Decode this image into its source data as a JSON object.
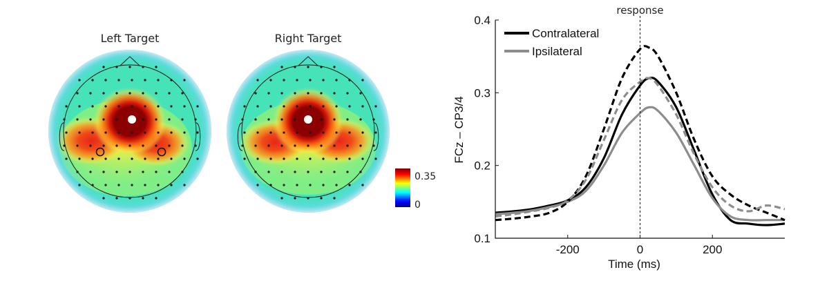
{
  "topomaps": [
    {
      "title": "Left Target",
      "hot_spots": [
        {
          "label": "frontocentral-peak",
          "value": 0.35
        },
        {
          "label": "left-posterior",
          "value": 0.27
        },
        {
          "label": "right-posterior",
          "value": 0.22
        }
      ],
      "marked_electrodes": [
        "left-posterior",
        "right-posterior"
      ]
    },
    {
      "title": "Right Target",
      "hot_spots": [
        {
          "label": "frontocentral-peak",
          "value": 0.35
        },
        {
          "label": "left-posterior",
          "value": 0.24
        },
        {
          "label": "right-posterior",
          "value": 0.25
        }
      ],
      "marked_electrodes": []
    }
  ],
  "colorbar": {
    "max_label": "0.35",
    "min_label": "0",
    "colormap": [
      "#00008f",
      "#0000ff",
      "#00ffff",
      "#ffff00",
      "#ff0000",
      "#800000"
    ]
  },
  "chart_data": {
    "type": "line",
    "annotation": "response",
    "xlabel": "Time (ms)",
    "ylabel": "FCz – CP3/4",
    "xlim": [
      -400,
      400
    ],
    "ylim": [
      0.1,
      0.4
    ],
    "xticks": [
      -200,
      0,
      200
    ],
    "xtick_labels": [
      "-200",
      "0",
      "200"
    ],
    "yticks": [
      0.1,
      0.2,
      0.3,
      0.4
    ],
    "ytick_labels": [
      "0.1",
      "0.2",
      "0.3",
      "0.4"
    ],
    "grid": false,
    "legend_position": "top-left",
    "legend": [
      {
        "name": "Contralateral",
        "color": "#000000"
      },
      {
        "name": "Ipsilateral",
        "color": "#8c8c8c"
      }
    ],
    "series": [
      {
        "name": "Contralateral",
        "group": "Left Target",
        "style": "solid",
        "color": "#000000",
        "x": [
          -400,
          -350,
          -300,
          -250,
          -200,
          -150,
          -100,
          -50,
          0,
          25,
          50,
          100,
          150,
          200,
          250,
          300,
          350,
          400
        ],
        "y": [
          0.135,
          0.137,
          0.14,
          0.145,
          0.152,
          0.17,
          0.21,
          0.27,
          0.31,
          0.32,
          0.315,
          0.28,
          0.22,
          0.16,
          0.125,
          0.12,
          0.118,
          0.12
        ]
      },
      {
        "name": "Ipsilateral",
        "group": "Left Target",
        "style": "solid",
        "color": "#8c8c8c",
        "x": [
          -400,
          -350,
          -300,
          -250,
          -200,
          -150,
          -100,
          -50,
          0,
          25,
          50,
          100,
          150,
          200,
          250,
          300,
          350,
          400
        ],
        "y": [
          0.133,
          0.135,
          0.138,
          0.143,
          0.15,
          0.165,
          0.2,
          0.245,
          0.272,
          0.28,
          0.275,
          0.245,
          0.2,
          0.155,
          0.13,
          0.125,
          0.125,
          0.125
        ]
      },
      {
        "name": "Contralateral",
        "group": "Right Target",
        "style": "dashed",
        "color": "#000000",
        "x": [
          -400,
          -350,
          -300,
          -250,
          -200,
          -150,
          -100,
          -50,
          0,
          25,
          50,
          100,
          150,
          200,
          250,
          300,
          350,
          400
        ],
        "y": [
          0.125,
          0.127,
          0.13,
          0.135,
          0.15,
          0.185,
          0.25,
          0.32,
          0.36,
          0.362,
          0.35,
          0.3,
          0.235,
          0.185,
          0.16,
          0.145,
          0.135,
          0.125
        ]
      },
      {
        "name": "Ipsilateral",
        "group": "Right Target",
        "style": "dashed",
        "color": "#8c8c8c",
        "x": [
          -400,
          -350,
          -300,
          -250,
          -200,
          -150,
          -100,
          -50,
          0,
          25,
          50,
          100,
          150,
          200,
          250,
          300,
          350,
          400
        ],
        "y": [
          0.13,
          0.133,
          0.137,
          0.142,
          0.152,
          0.18,
          0.235,
          0.29,
          0.315,
          0.32,
          0.31,
          0.27,
          0.215,
          0.17,
          0.145,
          0.137,
          0.145,
          0.14
        ]
      }
    ]
  }
}
